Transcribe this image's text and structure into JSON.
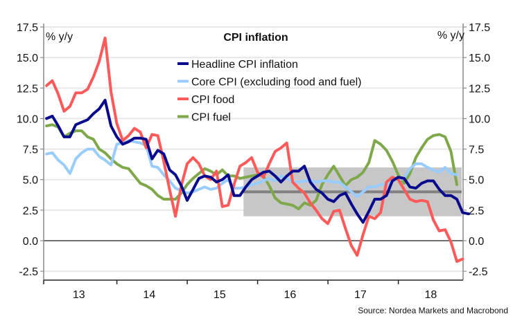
{
  "chart_data": {
    "type": "line",
    "title": "CPI inflation",
    "ylabel_left": "% y/y",
    "ylabel_right": "% y/y",
    "xlabel": "",
    "source": "Source: Nordea Markets and Macrobond",
    "ylim": [
      -3.2,
      17.5
    ],
    "yticks": [
      -2.5,
      0.0,
      2.5,
      5.0,
      7.5,
      10.0,
      12.5,
      15.0,
      17.5
    ],
    "ytick_labels": [
      "-2.5",
      "0.0",
      "2.5",
      "5.0",
      "7.5",
      "10.0",
      "12.5",
      "15.0",
      "17.5"
    ],
    "x_start": 2012.96,
    "x_end": 2018.92,
    "x_tick_boundaries": [
      2013.0,
      2014.0,
      2015.0,
      2016.0,
      2017.0,
      2018.0
    ],
    "x_category_labels": [
      "13",
      "14",
      "15",
      "16",
      "17",
      "18"
    ],
    "x_label_positions": [
      2013.5,
      2014.5,
      2015.5,
      2016.5,
      2017.5,
      2018.5
    ],
    "grid": true,
    "legend_position": "top-center",
    "target_band": {
      "low": 2.0,
      "high": 6.0,
      "center": 4.0,
      "x_from": 2015.8,
      "x_to": 2018.92
    },
    "series": [
      {
        "name": "Headline CPI inflation",
        "color": "#0a0a8c",
        "start": 2013.0,
        "step": 0.0833,
        "values": [
          10.0,
          10.2,
          9.4,
          8.5,
          8.5,
          9.5,
          9.7,
          9.9,
          10.4,
          10.8,
          11.5,
          9.4,
          8.5,
          7.9,
          8.1,
          8.4,
          8.4,
          8.3,
          6.7,
          7.4,
          7.1,
          5.8,
          5.4,
          4.5,
          3.3,
          4.2,
          5.1,
          5.3,
          5.2,
          4.8,
          5.0,
          5.4,
          3.7,
          3.7,
          4.4,
          5.0,
          5.3,
          5.6,
          5.7,
          5.3,
          4.8,
          5.3,
          5.7,
          5.7,
          6.1,
          4.8,
          4.2,
          3.9,
          3.4,
          3.2,
          3.7,
          3.9,
          3.0,
          2.2,
          1.5,
          2.4,
          3.4,
          3.4,
          3.7,
          4.9,
          5.2,
          5.1,
          4.4,
          4.3,
          4.7,
          4.9,
          4.9,
          4.2,
          3.7,
          3.7,
          3.4,
          2.3,
          2.2
        ]
      },
      {
        "name": "Core CPI (excluding food and fuel)",
        "color": "#99ccff",
        "start": 2013.0,
        "step": 0.0833,
        "values": [
          7.1,
          7.2,
          6.6,
          6.2,
          5.5,
          6.7,
          7.2,
          7.5,
          7.5,
          6.9,
          6.6,
          6.2,
          7.9,
          8.0,
          8.2,
          8.1,
          8.0,
          7.8,
          6.1,
          6.0,
          5.4,
          4.9,
          4.3,
          4.1,
          3.9,
          4.0,
          4.2,
          4.4,
          4.2,
          4.3,
          4.7,
          5.0,
          4.3,
          4.3,
          4.4,
          4.6,
          4.7,
          4.9,
          5.1,
          4.9,
          5.3,
          5.1,
          4.8,
          4.8,
          4.9,
          4.9,
          4.8,
          4.9,
          4.9,
          4.8,
          4.8,
          4.4,
          4.0,
          3.6,
          4.0,
          4.4,
          4.4,
          4.6,
          4.6,
          5.0,
          5.0,
          5.1,
          5.9,
          6.3,
          6.3,
          6.0,
          5.8,
          5.6,
          6.0,
          5.5,
          5.4
        ]
      },
      {
        "name": "CPI food",
        "color": "#ff5a5a",
        "start": 2013.0,
        "step": 0.0833,
        "values": [
          12.7,
          13.1,
          12.0,
          10.6,
          11.0,
          12.1,
          12.1,
          12.4,
          13.4,
          14.7,
          16.6,
          12.2,
          9.6,
          8.2,
          8.6,
          9.2,
          8.9,
          7.6,
          8.7,
          8.6,
          6.5,
          4.2,
          2.0,
          4.5,
          6.3,
          6.8,
          6.3,
          5.3,
          5.0,
          5.7,
          2.8,
          2.9,
          4.6,
          6.1,
          6.4,
          6.8,
          5.6,
          5.2,
          6.3,
          7.3,
          7.6,
          8.0,
          4.8,
          4.3,
          3.9,
          3.1,
          2.5,
          1.8,
          1.4,
          2.4,
          2.5,
          1.0,
          -0.4,
          -1.2,
          0.5,
          2.0,
          1.8,
          2.3,
          4.8,
          5.2,
          5.0,
          4.2,
          3.4,
          3.2,
          3.3,
          3.2,
          1.7,
          0.8,
          0.9,
          -0.1,
          -1.7,
          -1.5
        ]
      },
      {
        "name": "CPI fuel",
        "color": "#7fa84a",
        "start": 2013.0,
        "step": 0.0833,
        "values": [
          9.4,
          9.5,
          9.3,
          8.5,
          8.8,
          9.0,
          9.0,
          8.5,
          8.3,
          7.5,
          7.2,
          6.7,
          6.3,
          6.0,
          5.9,
          5.3,
          4.7,
          4.5,
          4.2,
          3.7,
          3.4,
          3.4,
          3.4,
          3.9,
          4.6,
          5.1,
          5.5,
          5.9,
          5.7,
          5.4,
          5.8,
          5.3,
          5.3,
          5.1,
          5.2,
          5.3,
          5.4,
          5.3,
          4.5,
          3.5,
          3.1,
          3.0,
          2.9,
          2.6,
          3.1,
          2.9,
          3.3,
          4.6,
          5.4,
          6.1,
          5.3,
          4.5,
          5.0,
          5.2,
          5.6,
          6.4,
          8.2,
          7.9,
          7.4,
          6.5,
          5.4,
          4.7,
          5.5,
          6.8,
          7.6,
          8.3,
          8.6,
          8.7,
          8.5,
          7.3,
          4.6
        ]
      }
    ]
  }
}
